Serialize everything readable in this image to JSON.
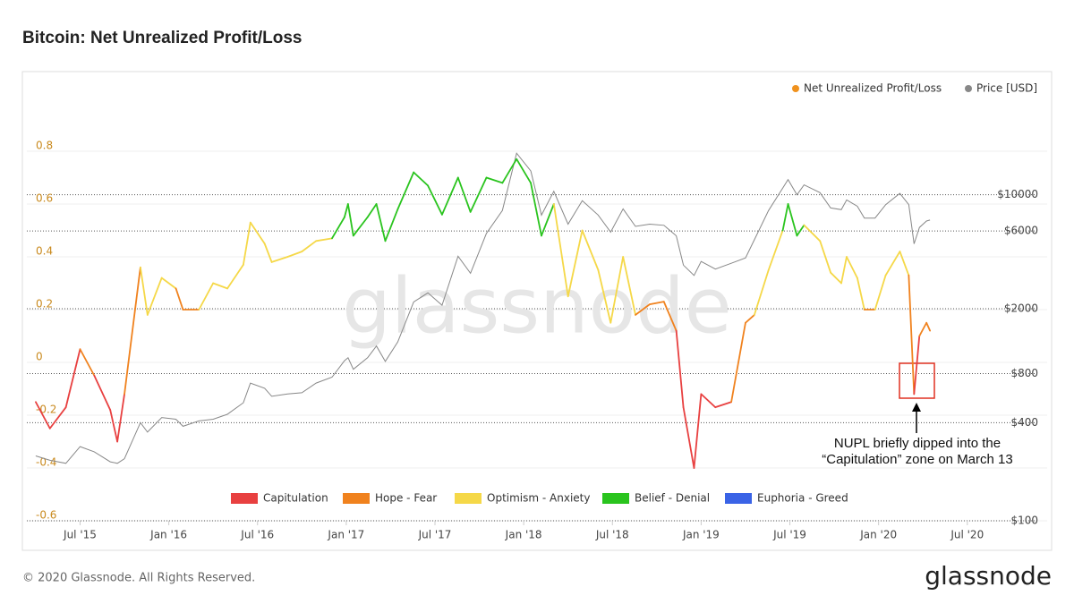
{
  "chart_data": {
    "type": "line",
    "title": "Bitcoin: Net Unrealized Profit/Loss",
    "watermark": "glassnode",
    "footer": "© 2020 Glassnode. All Rights Reserved.",
    "logo": "glassnode",
    "x": [
      2015.25,
      2015.33,
      2015.42,
      2015.5,
      2015.58,
      2015.67,
      2015.71,
      2015.75,
      2015.84,
      2015.88,
      2015.96,
      2016.04,
      2016.08,
      2016.17,
      2016.25,
      2016.33,
      2016.42,
      2016.46,
      2016.54,
      2016.58,
      2016.67,
      2016.75,
      2016.83,
      2016.92,
      2016.99,
      2017.01,
      2017.04,
      2017.12,
      2017.17,
      2017.22,
      2017.29,
      2017.38,
      2017.46,
      2017.54,
      2017.63,
      2017.7,
      2017.79,
      2017.88,
      2017.96,
      2018.04,
      2018.1,
      2018.17,
      2018.25,
      2018.33,
      2018.42,
      2018.49,
      2018.56,
      2018.63,
      2018.71,
      2018.79,
      2018.86,
      2018.9,
      2018.96,
      2019.0,
      2019.08,
      2019.17,
      2019.25,
      2019.3,
      2019.38,
      2019.46,
      2019.49,
      2019.54,
      2019.58,
      2019.67,
      2019.73,
      2019.79,
      2019.82,
      2019.88,
      2019.92,
      2019.98,
      2020.04,
      2020.12,
      2020.17,
      2020.2,
      2020.23,
      2020.27,
      2020.29
    ],
    "series": [
      {
        "name": "Net Unrealized Profit/Loss",
        "color": "#f0921e",
        "values": [
          -0.15,
          -0.25,
          -0.17,
          0.05,
          -0.05,
          -0.18,
          -0.3,
          -0.12,
          0.36,
          0.18,
          0.32,
          0.28,
          0.2,
          0.2,
          0.3,
          0.28,
          0.37,
          0.53,
          0.45,
          0.38,
          0.4,
          0.42,
          0.46,
          0.47,
          0.55,
          0.6,
          0.48,
          0.55,
          0.6,
          0.46,
          0.58,
          0.72,
          0.67,
          0.56,
          0.7,
          0.57,
          0.7,
          0.68,
          0.77,
          0.68,
          0.48,
          0.6,
          0.25,
          0.5,
          0.35,
          0.15,
          0.4,
          0.18,
          0.22,
          0.23,
          0.12,
          -0.17,
          -0.4,
          -0.12,
          -0.17,
          -0.15,
          0.15,
          0.18,
          0.35,
          0.5,
          0.6,
          0.48,
          0.52,
          0.46,
          0.34,
          0.3,
          0.4,
          0.32,
          0.2,
          0.2,
          0.33,
          0.42,
          0.33,
          -0.12,
          0.1,
          0.15,
          0.12
        ]
      },
      {
        "name": "Price [USD]",
        "color": "#888888",
        "axis": "y2",
        "values": [
          250,
          235,
          225,
          285,
          265,
          230,
          225,
          240,
          400,
          350,
          430,
          420,
          380,
          410,
          420,
          450,
          530,
          700,
          650,
          580,
          600,
          610,
          700,
          760,
          960,
          1000,
          850,
          1000,
          1180,
          950,
          1250,
          2200,
          2500,
          2100,
          4200,
          3300,
          5800,
          8000,
          18000,
          14000,
          7500,
          10500,
          6600,
          9200,
          7500,
          5900,
          8200,
          6400,
          6600,
          6500,
          5600,
          3700,
          3200,
          3900,
          3500,
          3800,
          4100,
          5300,
          8000,
          11000,
          12400,
          10000,
          11500,
          10300,
          8300,
          8100,
          9300,
          8500,
          7200,
          7200,
          8700,
          10200,
          8700,
          5000,
          6300,
          6900,
          7000
        ]
      }
    ],
    "zones": [
      {
        "name": "Capitulation",
        "color": "#e84040",
        "min": -1
      },
      {
        "name": "Hope - Fear",
        "color": "#f0821e",
        "min": 0
      },
      {
        "name": "Optimism - Anxiety",
        "color": "#f5d848",
        "min": 0.25
      },
      {
        "name": "Belief - Denial",
        "color": "#2ac41e",
        "min": 0.5
      },
      {
        "name": "Euphoria - Greed",
        "color": "#3a63e6",
        "min": 0.75
      }
    ],
    "xlim": [
      2015.2,
      2020.95
    ],
    "xticks": [
      {
        "value": 2015.5,
        "label": "Jul '15"
      },
      {
        "value": 2016.0,
        "label": "Jan '16"
      },
      {
        "value": 2016.5,
        "label": "Jul '16"
      },
      {
        "value": 2017.0,
        "label": "Jan '17"
      },
      {
        "value": 2017.5,
        "label": "Jul '17"
      },
      {
        "value": 2018.0,
        "label": "Jan '18"
      },
      {
        "value": 2018.5,
        "label": "Jul '18"
      },
      {
        "value": 2019.0,
        "label": "Jan '19"
      },
      {
        "value": 2019.5,
        "label": "Jul '19"
      },
      {
        "value": 2020.0,
        "label": "Jan '20"
      },
      {
        "value": 2020.5,
        "label": "Jul '20"
      }
    ],
    "ylim": [
      -0.6,
      1.0
    ],
    "yticks": [
      -0.6,
      -0.4,
      -0.2,
      0,
      0.2,
      0.4,
      0.6,
      0.8
    ],
    "y2lim": [
      100,
      39000
    ],
    "y2log": true,
    "y2ticks": [
      {
        "value": 100,
        "label": "$100"
      },
      {
        "value": 400,
        "label": "$400"
      },
      {
        "value": 800,
        "label": "$800"
      },
      {
        "value": 2000,
        "label": "$2000"
      },
      {
        "value": 6000,
        "label": "$6000"
      },
      {
        "value": 10000,
        "label": "$10000"
      }
    ],
    "annotation": {
      "lines": [
        "NUPL briefly dipped into the",
        "“Capitulation” zone on March 13"
      ],
      "color": "#e03020"
    }
  }
}
